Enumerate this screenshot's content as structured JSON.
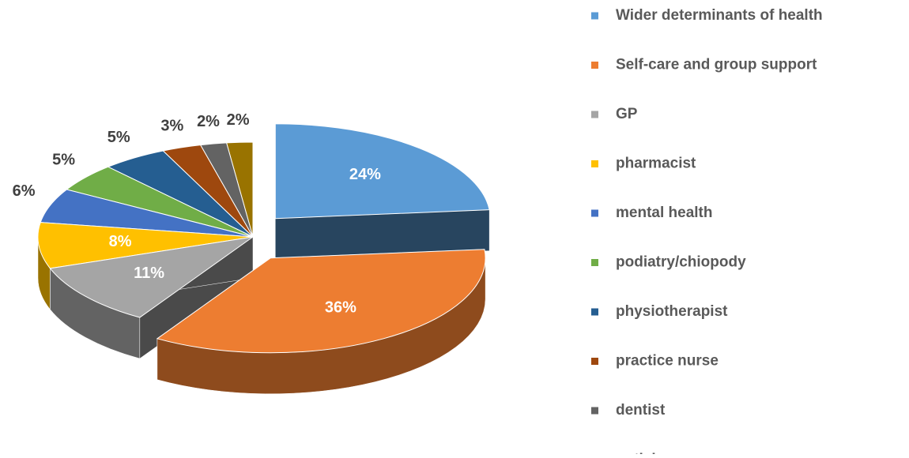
{
  "chart_data": {
    "type": "pie",
    "categories": [
      "Wider determinants of health",
      "Self-care and group support",
      "GP",
      "pharmacist",
      "mental health",
      "podiatry/chiopody",
      "physiotherapist",
      "practice nurse",
      "dentist",
      "optician"
    ],
    "values": [
      24,
      36,
      11,
      8,
      6,
      5,
      5,
      3,
      2,
      2
    ],
    "value_labels": [
      "24%",
      "36%",
      "11%",
      "8%",
      "6%",
      "5%",
      "5%",
      "3%",
      "2%",
      "2%"
    ],
    "colors": [
      "#5b9bd5",
      "#ed7d31",
      "#a5a5a5",
      "#ffc000",
      "#4472c4",
      "#70ad47",
      "#255e91",
      "#9e480e",
      "#636363",
      "#997300"
    ],
    "legend": "right"
  }
}
